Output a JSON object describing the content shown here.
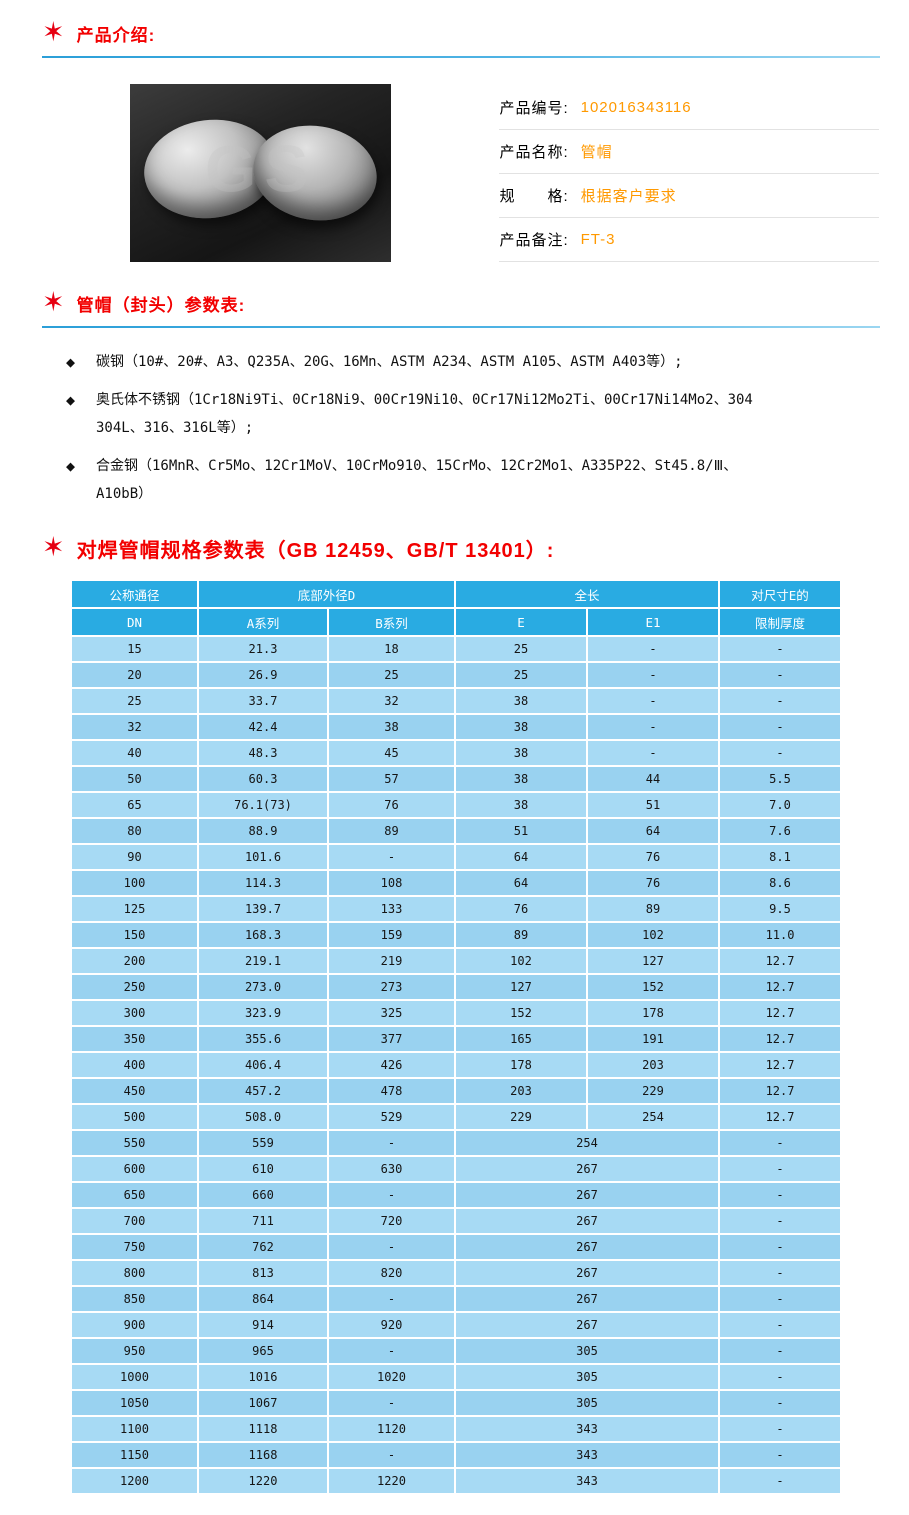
{
  "sections": {
    "intro": {
      "title": "产品介绍:"
    },
    "param": {
      "title": "管帽（封头）参数表:"
    },
    "spec": {
      "title": "对焊管帽规格参数表（GB 12459、GB/T 13401）:"
    }
  },
  "icons": {
    "section_star": "✶",
    "bullet_diamond": "◆"
  },
  "product": {
    "watermark": "GS",
    "fields": [
      {
        "label": "产品编号:",
        "value": "102016343116"
      },
      {
        "label": "产品名称:",
        "value": "管帽"
      },
      {
        "label": "规　　格:",
        "value": "根据客户要求"
      },
      {
        "label": "产品备注:",
        "value": "FT-3"
      }
    ]
  },
  "materials": [
    "碳钢（10#、20#、A3、Q235A、20G、16Mn、ASTM A234、ASTM A105、ASTM A403等）;",
    "奥氏体不锈钢（1Cr18Ni9Ti、0Cr18Ni9、00Cr19Ni10、0Cr17Ni12Mo2Ti、00Cr17Ni14Mo2、304\n304L、316、316L等）;",
    "合金钢（16MnR、Cr5Mo、12Cr1MoV、10CrMo910、15CrMo、12Cr2Mo1、A335P22、St45.8/Ⅲ、\nA10bB）"
  ],
  "table": {
    "header": {
      "dn_group": "公称通径",
      "dn": "DN",
      "d_group": "底部外径D",
      "a_series": "A系列",
      "b_series": "B系列",
      "len_group": "全长",
      "e": "E",
      "e1": "E1",
      "limit_group": "对尺寸E的",
      "limit": "限制厚度"
    },
    "rows": [
      [
        "15",
        "21.3",
        "18",
        "25",
        "-",
        "-"
      ],
      [
        "20",
        "26.9",
        "25",
        "25",
        "-",
        "-"
      ],
      [
        "25",
        "33.7",
        "32",
        "38",
        "-",
        "-"
      ],
      [
        "32",
        "42.4",
        "38",
        "38",
        "-",
        "-"
      ],
      [
        "40",
        "48.3",
        "45",
        "38",
        "-",
        "-"
      ],
      [
        "50",
        "60.3",
        "57",
        "38",
        "44",
        "5.5"
      ],
      [
        "65",
        "76.1(73)",
        "76",
        "38",
        "51",
        "7.0"
      ],
      [
        "80",
        "88.9",
        "89",
        "51",
        "64",
        "7.6"
      ],
      [
        "90",
        "101.6",
        "-",
        "64",
        "76",
        "8.1"
      ],
      [
        "100",
        "114.3",
        "108",
        "64",
        "76",
        "8.6"
      ],
      [
        "125",
        "139.7",
        "133",
        "76",
        "89",
        "9.5"
      ],
      [
        "150",
        "168.3",
        "159",
        "89",
        "102",
        "11.0"
      ],
      [
        "200",
        "219.1",
        "219",
        "102",
        "127",
        "12.7"
      ],
      [
        "250",
        "273.0",
        "273",
        "127",
        "152",
        "12.7"
      ],
      [
        "300",
        "323.9",
        "325",
        "152",
        "178",
        "12.7"
      ],
      [
        "350",
        "355.6",
        "377",
        "165",
        "191",
        "12.7"
      ],
      [
        "400",
        "406.4",
        "426",
        "178",
        "203",
        "12.7"
      ],
      [
        "450",
        "457.2",
        "478",
        "203",
        "229",
        "12.7"
      ],
      [
        "500",
        "508.0",
        "529",
        "229",
        "254",
        "12.7"
      ],
      [
        "550",
        "559",
        "-",
        "254",
        "-"
      ],
      [
        "600",
        "610",
        "630",
        "267",
        "-"
      ],
      [
        "650",
        "660",
        "-",
        "267",
        "-"
      ],
      [
        "700",
        "711",
        "720",
        "267",
        "-"
      ],
      [
        "750",
        "762",
        "-",
        "267",
        "-"
      ],
      [
        "800",
        "813",
        "820",
        "267",
        "-"
      ],
      [
        "850",
        "864",
        "-",
        "267",
        "-"
      ],
      [
        "900",
        "914",
        "920",
        "267",
        "-"
      ],
      [
        "950",
        "965",
        "-",
        "305",
        "-"
      ],
      [
        "1000",
        "1016",
        "1020",
        "305",
        "-"
      ],
      [
        "1050",
        "1067",
        "-",
        "305",
        "-"
      ],
      [
        "1100",
        "1118",
        "1120",
        "343",
        "-"
      ],
      [
        "1150",
        "1168",
        "-",
        "343",
        "-"
      ],
      [
        "1200",
        "1220",
        "1220",
        "343",
        "-"
      ]
    ]
  },
  "colors": {
    "accent_red": "#f20000",
    "value_orange": "#ff9900",
    "table_header_blue": "#29abe2",
    "row_blue": "#a7daf4",
    "row_blue_alt": "#99d2f0",
    "divider_blue": "#2b9fd8"
  }
}
